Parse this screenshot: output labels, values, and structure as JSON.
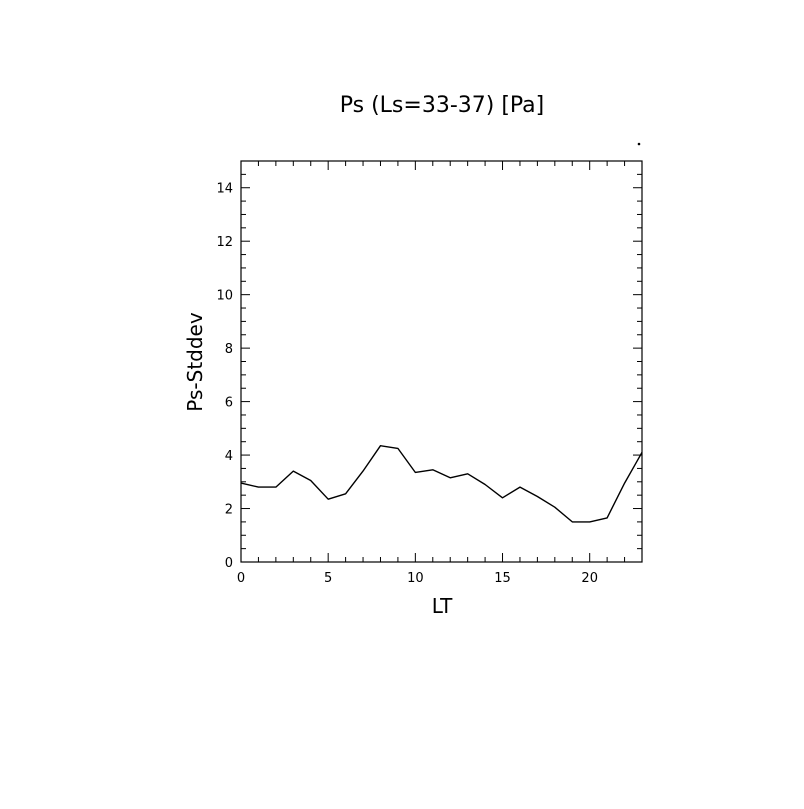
{
  "chart_data": {
    "type": "line",
    "title": "Ps (Ls=33-37) [Pa]",
    "xlabel": "LT",
    "ylabel": "Ps-Stddev",
    "xlim": [
      0,
      23
    ],
    "ylim": [
      0,
      15
    ],
    "x_ticks": [
      "0",
      "5",
      "10",
      "15",
      "20"
    ],
    "y_ticks": [
      "0",
      "2",
      "4",
      "6",
      "8",
      "10",
      "12",
      "14"
    ],
    "grid": false,
    "series": [
      {
        "x": [
          0,
          1,
          2,
          3,
          4,
          5,
          6,
          7,
          8,
          9,
          10,
          11,
          12,
          13,
          14,
          15,
          16,
          17,
          18,
          19,
          20,
          21,
          22,
          23
        ],
        "values": [
          2.95,
          2.8,
          2.8,
          3.4,
          3.05,
          2.35,
          2.55,
          3.4,
          4.35,
          4.25,
          3.35,
          3.45,
          3.15,
          3.3,
          2.9,
          2.4,
          2.8,
          2.45,
          2.05,
          1.5,
          1.5,
          1.65,
          2.95,
          4.1
        ]
      }
    ]
  }
}
